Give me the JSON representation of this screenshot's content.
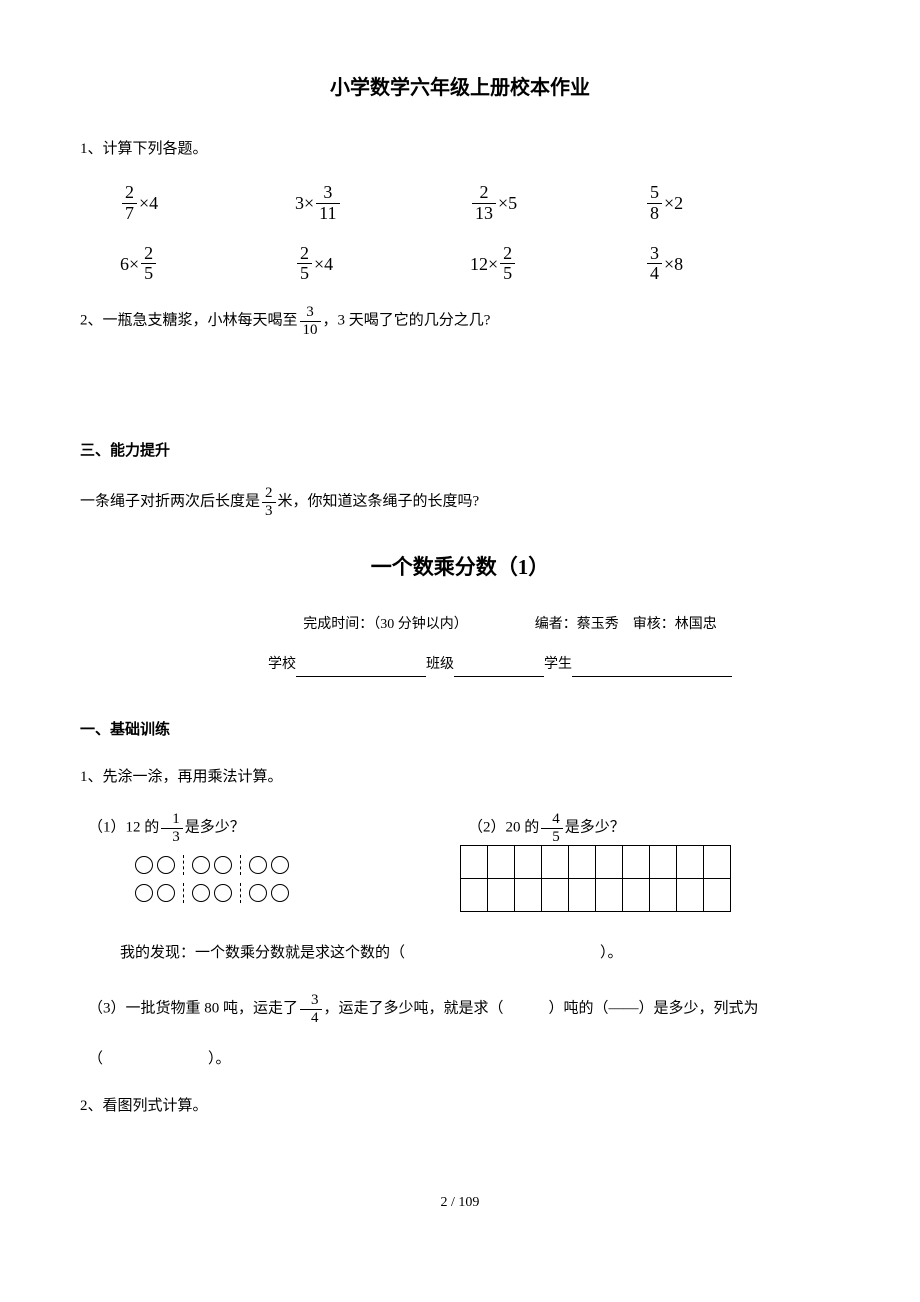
{
  "page_title": "小学数学六年级上册校本作业",
  "q1": {
    "label": "1、计算下列各题。",
    "row1": [
      {
        "prefix": "",
        "num": "2",
        "den": "7",
        "op": "×",
        "after": "4"
      },
      {
        "prefix": "3×",
        "num": "3",
        "den": "11",
        "op": "",
        "after": ""
      },
      {
        "prefix": "",
        "num": "2",
        "den": "13",
        "op": "×",
        "after": "5"
      },
      {
        "prefix": "",
        "num": "5",
        "den": "8",
        "op": "×",
        "after": "2"
      }
    ],
    "row2": [
      {
        "prefix": "6×",
        "num": "2",
        "den": "5",
        "op": "",
        "after": ""
      },
      {
        "prefix": "",
        "num": "2",
        "den": "5",
        "op": "×",
        "after": "4"
      },
      {
        "prefix": "12×",
        "num": "2",
        "den": "5",
        "op": "",
        "after": ""
      },
      {
        "prefix": "",
        "num": "3",
        "den": "4",
        "op": "×",
        "after": "8"
      }
    ]
  },
  "q2": {
    "before": "2、一瓶急支糖浆，小林每天喝至",
    "frac": {
      "num": "3",
      "den": "10"
    },
    "after": "，3 天喝了它的几分之几?"
  },
  "section3": "三、能力提升",
  "q3": {
    "before": "一条绳子对折两次后长度是",
    "frac": {
      "num": "2",
      "den": "3"
    },
    "after": "米，你知道这条绳子的长度吗?"
  },
  "big_title": "一个数乘分数（1）",
  "meta": {
    "time_label": "完成时间：",
    "time": "（30 分钟以内）",
    "editor_label": "编者：",
    "editor": "蔡玉秀",
    "reviewer_label": "审核：",
    "reviewer": "林国忠"
  },
  "form": {
    "school": "学校",
    "class": "班级",
    "student": "学生"
  },
  "section_a": "一、基础训练",
  "qa1_label": "1、先涂一涂，再用乘法计算。",
  "sub1": {
    "before": "（1）12 的",
    "frac": {
      "num": "1",
      "den": "3"
    },
    "after": "是多少？"
  },
  "sub2": {
    "before": "（2）20 的",
    "frac": {
      "num": "4",
      "den": "5"
    },
    "after": "是多少？"
  },
  "discover": "我的发现：一个数乘分数就是求这个数的（　　　　　　　　　　　　　）。",
  "sub3": {
    "before": "（3）一批货物重 80 吨，运走了",
    "frac": {
      "num": "3",
      "den": "4"
    },
    "mid": "，运走了多少吨，就是求（　　　）吨的（——）是多少，列式为",
    "tail": "（　　　　　　　）。"
  },
  "qa2_label": "2、看图列式计算。",
  "page_number": "2 / 109",
  "grid": {
    "cols": 10,
    "rows": 2
  }
}
